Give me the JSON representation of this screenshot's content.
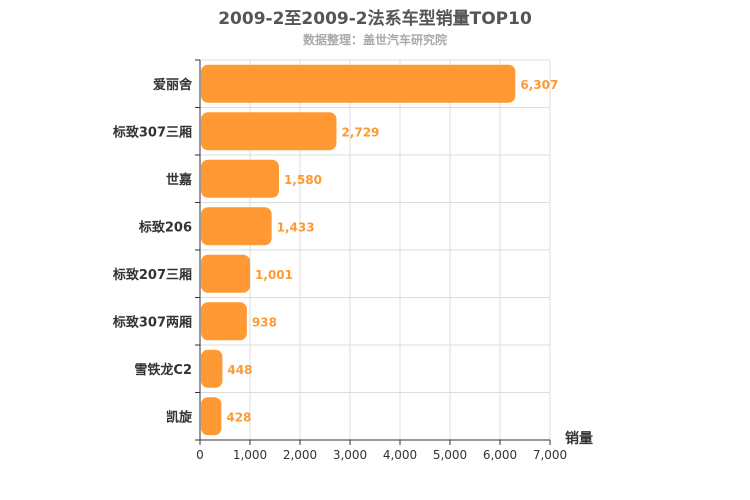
{
  "chart_data": {
    "type": "bar",
    "orientation": "horizontal",
    "title": "2009-2至2009-2法系车型销量TOP10",
    "subtitle": "数据整理：盖世汽车研究院",
    "categories": [
      "爱丽舍",
      "标致307三厢",
      "世嘉",
      "标致206",
      "标致207三厢",
      "标致307两厢",
      "雪铁龙C2",
      "凯旋"
    ],
    "values": [
      6307,
      2729,
      1580,
      1433,
      1001,
      938,
      448,
      428
    ],
    "value_labels": [
      "6,307",
      "2,729",
      "1,580",
      "1,433",
      "1,001",
      "938",
      "448",
      "428"
    ],
    "xlabel": "销量",
    "ylabel": "",
    "xlim": [
      0,
      7000
    ],
    "x_ticks": [
      0,
      1000,
      2000,
      3000,
      4000,
      5000,
      6000,
      7000
    ],
    "x_tick_labels": [
      "0",
      "1,000",
      "2,000",
      "3,000",
      "4,000",
      "5,000",
      "6,000",
      "7,000"
    ],
    "grid": true,
    "legend": "none",
    "colors": {
      "bar": "#ff9933",
      "label": "#ff9933",
      "grid": "#dddddd",
      "axis": "#333333"
    }
  }
}
